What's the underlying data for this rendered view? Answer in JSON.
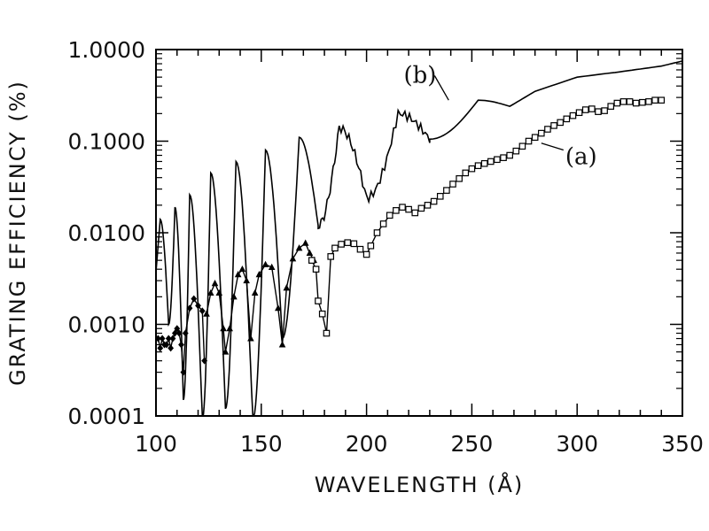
{
  "chart_data": {
    "type": "line",
    "xlabel": "WAVELENGTH (Å)",
    "ylabel": "GRATING EFFICIENCY (%)",
    "xlim": [
      100,
      350
    ],
    "ylim": [
      0.0001,
      1.0
    ],
    "yscale": "log",
    "grid": false,
    "x_ticks": [
      100,
      150,
      200,
      250,
      300,
      350
    ],
    "x_tick_labels": [
      "100",
      "150",
      "200",
      "250",
      "300",
      "350"
    ],
    "y_ticks": [
      0.0001,
      0.001,
      0.01,
      0.1,
      1.0
    ],
    "y_tick_labels": [
      "0.0001",
      "0.0010",
      "0.0100",
      "0.1000",
      "1.0000"
    ],
    "series": [
      {
        "name": "(b)",
        "marker": "none",
        "oscillation_peaks": [
          {
            "x": 102,
            "y": 0.014
          },
          {
            "x": 109,
            "y": 0.019
          },
          {
            "x": 116,
            "y": 0.026
          },
          {
            "x": 126,
            "y": 0.045
          },
          {
            "x": 138,
            "y": 0.06
          },
          {
            "x": 152,
            "y": 0.08
          },
          {
            "x": 168,
            "y": 0.11
          },
          {
            "x": 187,
            "y": 0.14
          },
          {
            "x": 215,
            "y": 0.2
          },
          {
            "x": 253,
            "y": 0.28
          }
        ],
        "oscillation_minima": [
          {
            "x": 106,
            "y": 0.001
          },
          {
            "x": 113,
            "y": 0.00015
          },
          {
            "x": 122,
            "y": 9e-05
          },
          {
            "x": 133,
            "y": 0.00012
          },
          {
            "x": 146,
            "y": 9e-05
          },
          {
            "x": 160,
            "y": 0.0007
          },
          {
            "x": 177,
            "y": 0.012
          },
          {
            "x": 200,
            "y": 0.024
          },
          {
            "x": 230,
            "y": 0.105
          },
          {
            "x": 268,
            "y": 0.24
          }
        ],
        "tail": [
          {
            "x": 280,
            "y": 0.35
          },
          {
            "x": 300,
            "y": 0.5
          },
          {
            "x": 320,
            "y": 0.57
          },
          {
            "x": 340,
            "y": 0.66
          },
          {
            "x": 350,
            "y": 0.75
          }
        ]
      },
      {
        "name": "(a)",
        "segments": [
          {
            "marker": "diamond",
            "points": [
              {
                "x": 101,
                "y": 0.0007
              },
              {
                "x": 102,
                "y": 0.00055
              },
              {
                "x": 103,
                "y": 0.0007
              },
              {
                "x": 104,
                "y": 0.0006
              },
              {
                "x": 105,
                "y": 0.0006
              },
              {
                "x": 106,
                "y": 0.0007
              },
              {
                "x": 107,
                "y": 0.00055
              },
              {
                "x": 108,
                "y": 0.0007
              },
              {
                "x": 109,
                "y": 0.0008
              },
              {
                "x": 110,
                "y": 0.0009
              },
              {
                "x": 111,
                "y": 0.0008
              },
              {
                "x": 112,
                "y": 0.0006
              },
              {
                "x": 113,
                "y": 0.0003
              },
              {
                "x": 114,
                "y": 0.0008
              },
              {
                "x": 116,
                "y": 0.0015
              },
              {
                "x": 118,
                "y": 0.0019
              },
              {
                "x": 120,
                "y": 0.0016
              },
              {
                "x": 122,
                "y": 0.0014
              },
              {
                "x": 123,
                "y": 0.0004
              }
            ]
          },
          {
            "marker": "triangle",
            "points": [
              {
                "x": 124,
                "y": 0.0013
              },
              {
                "x": 126,
                "y": 0.0022
              },
              {
                "x": 128,
                "y": 0.0028
              },
              {
                "x": 130,
                "y": 0.0022
              },
              {
                "x": 132,
                "y": 0.0009
              },
              {
                "x": 133,
                "y": 0.0005
              },
              {
                "x": 135,
                "y": 0.0009
              },
              {
                "x": 137,
                "y": 0.002
              },
              {
                "x": 139,
                "y": 0.0035
              },
              {
                "x": 141,
                "y": 0.004
              },
              {
                "x": 143,
                "y": 0.003
              },
              {
                "x": 145,
                "y": 0.0007
              },
              {
                "x": 147,
                "y": 0.0022
              },
              {
                "x": 149,
                "y": 0.0035
              },
              {
                "x": 152,
                "y": 0.0045
              },
              {
                "x": 155,
                "y": 0.0042
              },
              {
                "x": 158,
                "y": 0.0015
              },
              {
                "x": 160,
                "y": 0.0006
              },
              {
                "x": 162,
                "y": 0.0025
              },
              {
                "x": 165,
                "y": 0.0052
              },
              {
                "x": 168,
                "y": 0.0068
              },
              {
                "x": 171,
                "y": 0.0077
              },
              {
                "x": 173,
                "y": 0.006
              },
              {
                "x": 175,
                "y": 0.005
              }
            ]
          },
          {
            "marker": "square",
            "points": [
              {
                "x": 174,
                "y": 0.005
              },
              {
                "x": 176,
                "y": 0.004
              },
              {
                "x": 177,
                "y": 0.0018
              },
              {
                "x": 179,
                "y": 0.0013
              },
              {
                "x": 181,
                "y": 0.0008
              },
              {
                "x": 183,
                "y": 0.0055
              },
              {
                "x": 185,
                "y": 0.0068
              },
              {
                "x": 188,
                "y": 0.0075
              },
              {
                "x": 191,
                "y": 0.0078
              },
              {
                "x": 194,
                "y": 0.0076
              },
              {
                "x": 197,
                "y": 0.0066
              },
              {
                "x": 200,
                "y": 0.0058
              },
              {
                "x": 202,
                "y": 0.0072
              },
              {
                "x": 205,
                "y": 0.01
              },
              {
                "x": 208,
                "y": 0.0125
              },
              {
                "x": 211,
                "y": 0.0155
              },
              {
                "x": 214,
                "y": 0.0175
              },
              {
                "x": 217,
                "y": 0.019
              },
              {
                "x": 220,
                "y": 0.018
              },
              {
                "x": 223,
                "y": 0.0165
              },
              {
                "x": 226,
                "y": 0.0185
              },
              {
                "x": 229,
                "y": 0.02
              },
              {
                "x": 232,
                "y": 0.022
              },
              {
                "x": 235,
                "y": 0.025
              },
              {
                "x": 238,
                "y": 0.029
              },
              {
                "x": 241,
                "y": 0.034
              },
              {
                "x": 244,
                "y": 0.039
              },
              {
                "x": 247,
                "y": 0.045
              },
              {
                "x": 250,
                "y": 0.05
              },
              {
                "x": 253,
                "y": 0.054
              },
              {
                "x": 256,
                "y": 0.057
              },
              {
                "x": 259,
                "y": 0.06
              },
              {
                "x": 262,
                "y": 0.063
              },
              {
                "x": 265,
                "y": 0.066
              },
              {
                "x": 268,
                "y": 0.07
              },
              {
                "x": 271,
                "y": 0.078
              },
              {
                "x": 274,
                "y": 0.088
              },
              {
                "x": 277,
                "y": 0.1
              },
              {
                "x": 280,
                "y": 0.11
              },
              {
                "x": 283,
                "y": 0.122
              },
              {
                "x": 286,
                "y": 0.135
              },
              {
                "x": 289,
                "y": 0.148
              },
              {
                "x": 292,
                "y": 0.16
              },
              {
                "x": 295,
                "y": 0.175
              },
              {
                "x": 298,
                "y": 0.19
              },
              {
                "x": 301,
                "y": 0.205
              },
              {
                "x": 304,
                "y": 0.22
              },
              {
                "x": 307,
                "y": 0.225
              },
              {
                "x": 310,
                "y": 0.21
              },
              {
                "x": 313,
                "y": 0.215
              },
              {
                "x": 316,
                "y": 0.24
              },
              {
                "x": 319,
                "y": 0.26
              },
              {
                "x": 322,
                "y": 0.27
              },
              {
                "x": 325,
                "y": 0.27
              },
              {
                "x": 328,
                "y": 0.26
              },
              {
                "x": 331,
                "y": 0.265
              },
              {
                "x": 334,
                "y": 0.27
              },
              {
                "x": 337,
                "y": 0.28
              },
              {
                "x": 340,
                "y": 0.28
              }
            ]
          }
        ]
      }
    ],
    "annotations": [
      {
        "text": "(b)",
        "x": 234,
        "y": 0.38
      },
      {
        "text": "(a)",
        "x": 291,
        "y": 0.07
      }
    ]
  }
}
